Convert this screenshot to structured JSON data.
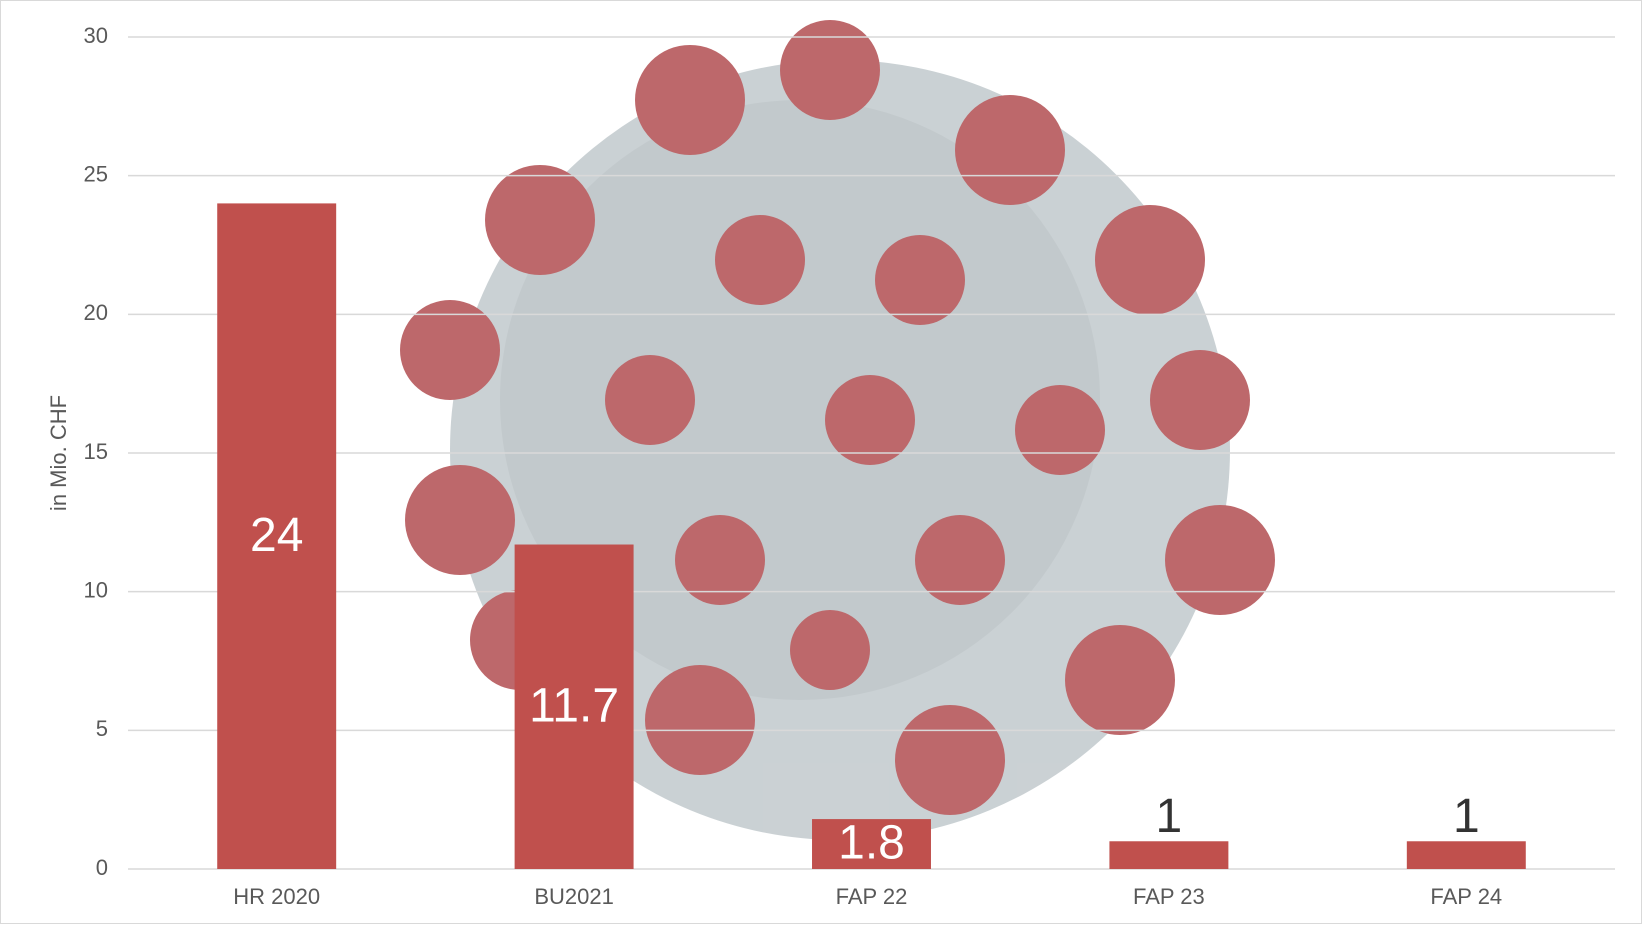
{
  "chart_data": {
    "type": "bar",
    "y_label": "in Mio. CHF",
    "categories": [
      "HR 2020",
      "BU2021",
      "FAP 22",
      "FAP 23",
      "FAP 24"
    ],
    "values": [
      24,
      11.7,
      1.8,
      1,
      1
    ],
    "color": "#c0504d",
    "ylim": [
      0,
      30
    ],
    "yticks": [
      0,
      5,
      10,
      15,
      20,
      25,
      30
    ],
    "grid": true
  }
}
